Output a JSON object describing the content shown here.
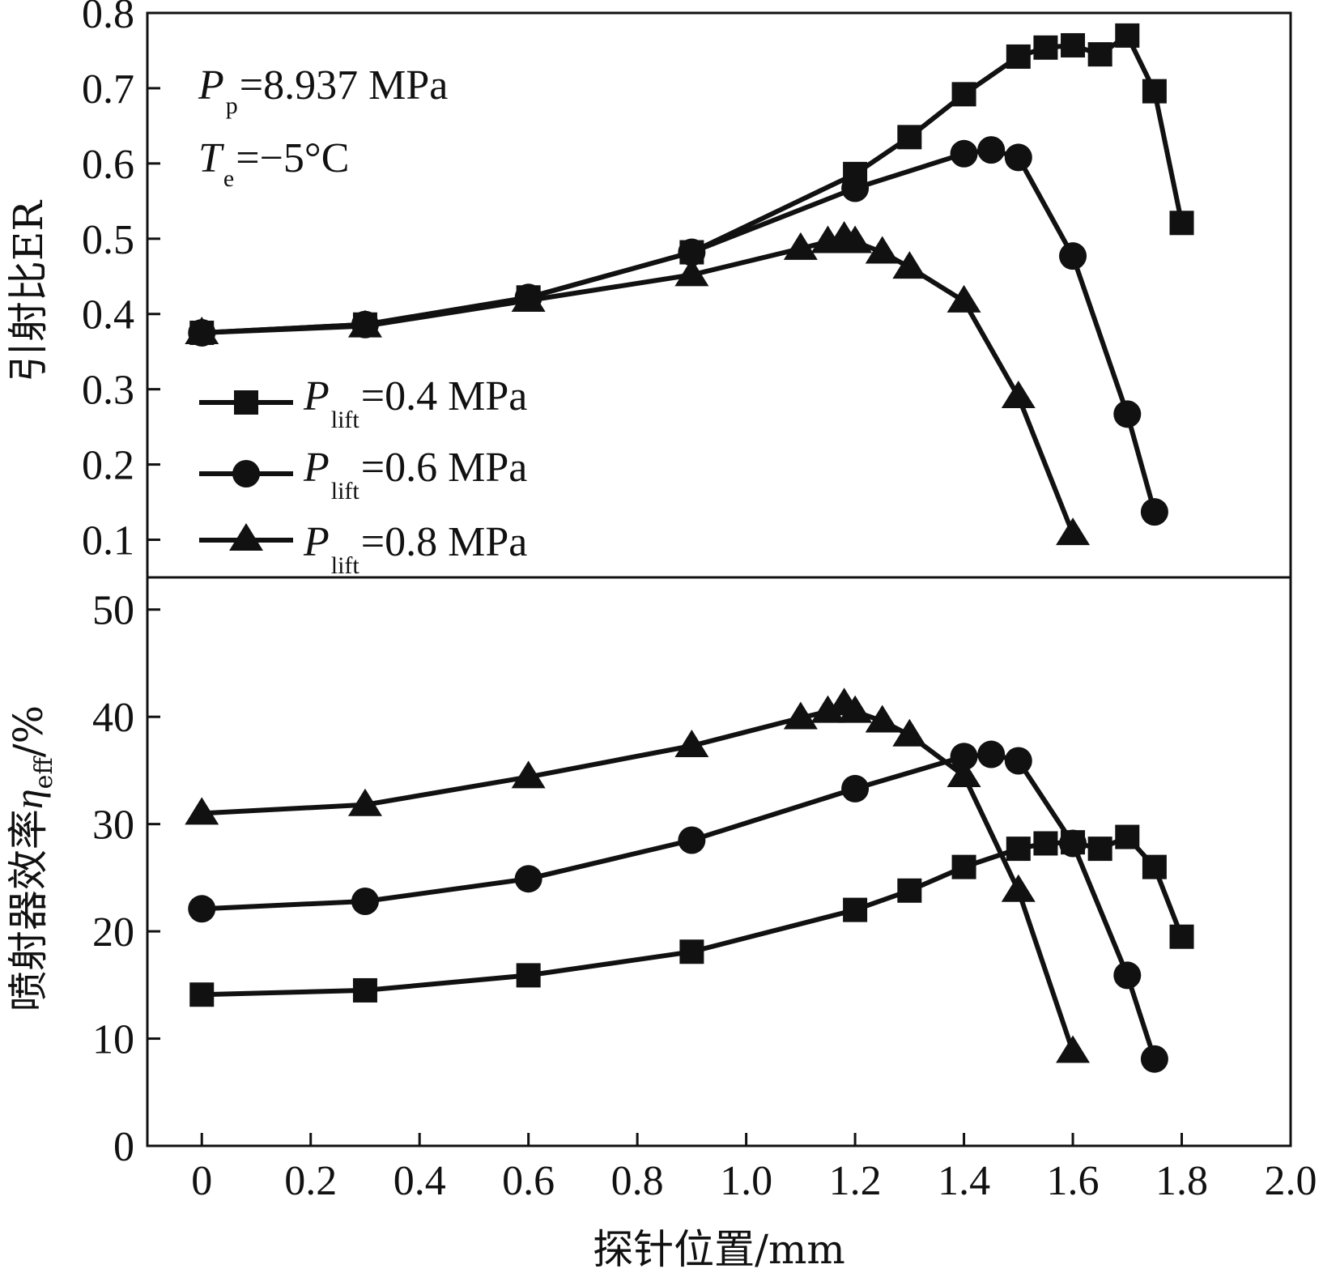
{
  "chart_data": [
    {
      "type": "line",
      "panel": "top",
      "ylabel": "引射比ER",
      "ylim": [
        0.05,
        0.8
      ],
      "yticks": [
        "0.1",
        "0.2",
        "0.3",
        "0.4",
        "0.5",
        "0.6",
        "0.7",
        "0.8"
      ],
      "annotation": {
        "pp_symbol": "P",
        "pp_sub": "p",
        "pp_value": "=8.937 MPa",
        "te_symbol": "T",
        "te_sub": "e",
        "te_value": "=−5°C"
      },
      "legend": {
        "position": "lower-left",
        "entries": [
          {
            "symbol": "P",
            "sub": "lift",
            "value": "=0.4 MPa",
            "marker": "square"
          },
          {
            "symbol": "P",
            "sub": "lift",
            "value": "=0.6 MPa",
            "marker": "circle"
          },
          {
            "symbol": "P",
            "sub": "lift",
            "value": "=0.8 MPa",
            "marker": "triangle"
          }
        ]
      },
      "series": [
        {
          "name": "Plift=0.4 MPa",
          "marker": "square",
          "x": [
            0,
            0.3,
            0.6,
            0.9,
            1.2,
            1.3,
            1.4,
            1.5,
            1.55,
            1.6,
            1.65,
            1.7,
            1.75,
            1.8
          ],
          "y": [
            0.375,
            0.386,
            0.422,
            0.482,
            0.586,
            0.635,
            0.692,
            0.742,
            0.754,
            0.757,
            0.745,
            0.77,
            0.696,
            0.521
          ]
        },
        {
          "name": "Plift=0.6 MPa",
          "marker": "circle",
          "x": [
            0,
            0.3,
            0.6,
            0.9,
            1.2,
            1.4,
            1.45,
            1.5,
            1.6,
            1.7,
            1.75
          ],
          "y": [
            0.375,
            0.386,
            0.422,
            0.482,
            0.567,
            0.613,
            0.618,
            0.608,
            0.477,
            0.267,
            0.137
          ]
        },
        {
          "name": "Plift=0.8 MPa",
          "marker": "triangle",
          "x": [
            0,
            0.3,
            0.6,
            0.9,
            1.1,
            1.15,
            1.18,
            1.2,
            1.25,
            1.3,
            1.4,
            1.5,
            1.6
          ],
          "y": [
            0.375,
            0.384,
            0.418,
            0.452,
            0.487,
            0.496,
            0.502,
            0.496,
            0.482,
            0.462,
            0.417,
            0.29,
            0.108
          ]
        }
      ]
    },
    {
      "type": "line",
      "panel": "bottom",
      "ylabel_main": "喷射器效率",
      "ylabel_symbol": "η",
      "ylabel_sub": "eff",
      "ylabel_unit": "/%",
      "xlabel": "探针位置/mm",
      "xlim": [
        -0.1,
        2.0
      ],
      "ylim": [
        0,
        53
      ],
      "xticks": [
        "0",
        "0.2",
        "0.4",
        "0.6",
        "0.8",
        "1.0",
        "1.2",
        "1.4",
        "1.6",
        "1.8",
        "2.0"
      ],
      "yticks": [
        "0",
        "10",
        "20",
        "30",
        "40",
        "50"
      ],
      "series": [
        {
          "name": "Plift=0.4 MPa",
          "marker": "square",
          "x": [
            0,
            0.3,
            0.6,
            0.9,
            1.2,
            1.3,
            1.4,
            1.5,
            1.55,
            1.6,
            1.65,
            1.7,
            1.75,
            1.8
          ],
          "y": [
            14.1,
            14.5,
            15.9,
            18.1,
            22.0,
            23.8,
            26.0,
            27.7,
            28.2,
            28.3,
            27.7,
            28.8,
            26.0,
            19.5
          ]
        },
        {
          "name": "Plift=0.6 MPa",
          "marker": "circle",
          "x": [
            0,
            0.3,
            0.6,
            0.9,
            1.2,
            1.4,
            1.45,
            1.5,
            1.6,
            1.7,
            1.75
          ],
          "y": [
            22.1,
            22.8,
            24.9,
            28.5,
            33.3,
            36.3,
            36.5,
            35.9,
            28.2,
            15.9,
            8.1
          ]
        },
        {
          "name": "Plift=0.8 MPa",
          "marker": "triangle",
          "x": [
            0,
            0.3,
            0.6,
            0.9,
            1.1,
            1.15,
            1.18,
            1.2,
            1.25,
            1.3,
            1.4,
            1.5,
            1.6
          ],
          "y": [
            31.0,
            31.8,
            34.4,
            37.3,
            39.9,
            40.5,
            41.2,
            40.5,
            39.6,
            38.3,
            34.5,
            23.8,
            8.8
          ]
        }
      ]
    }
  ]
}
